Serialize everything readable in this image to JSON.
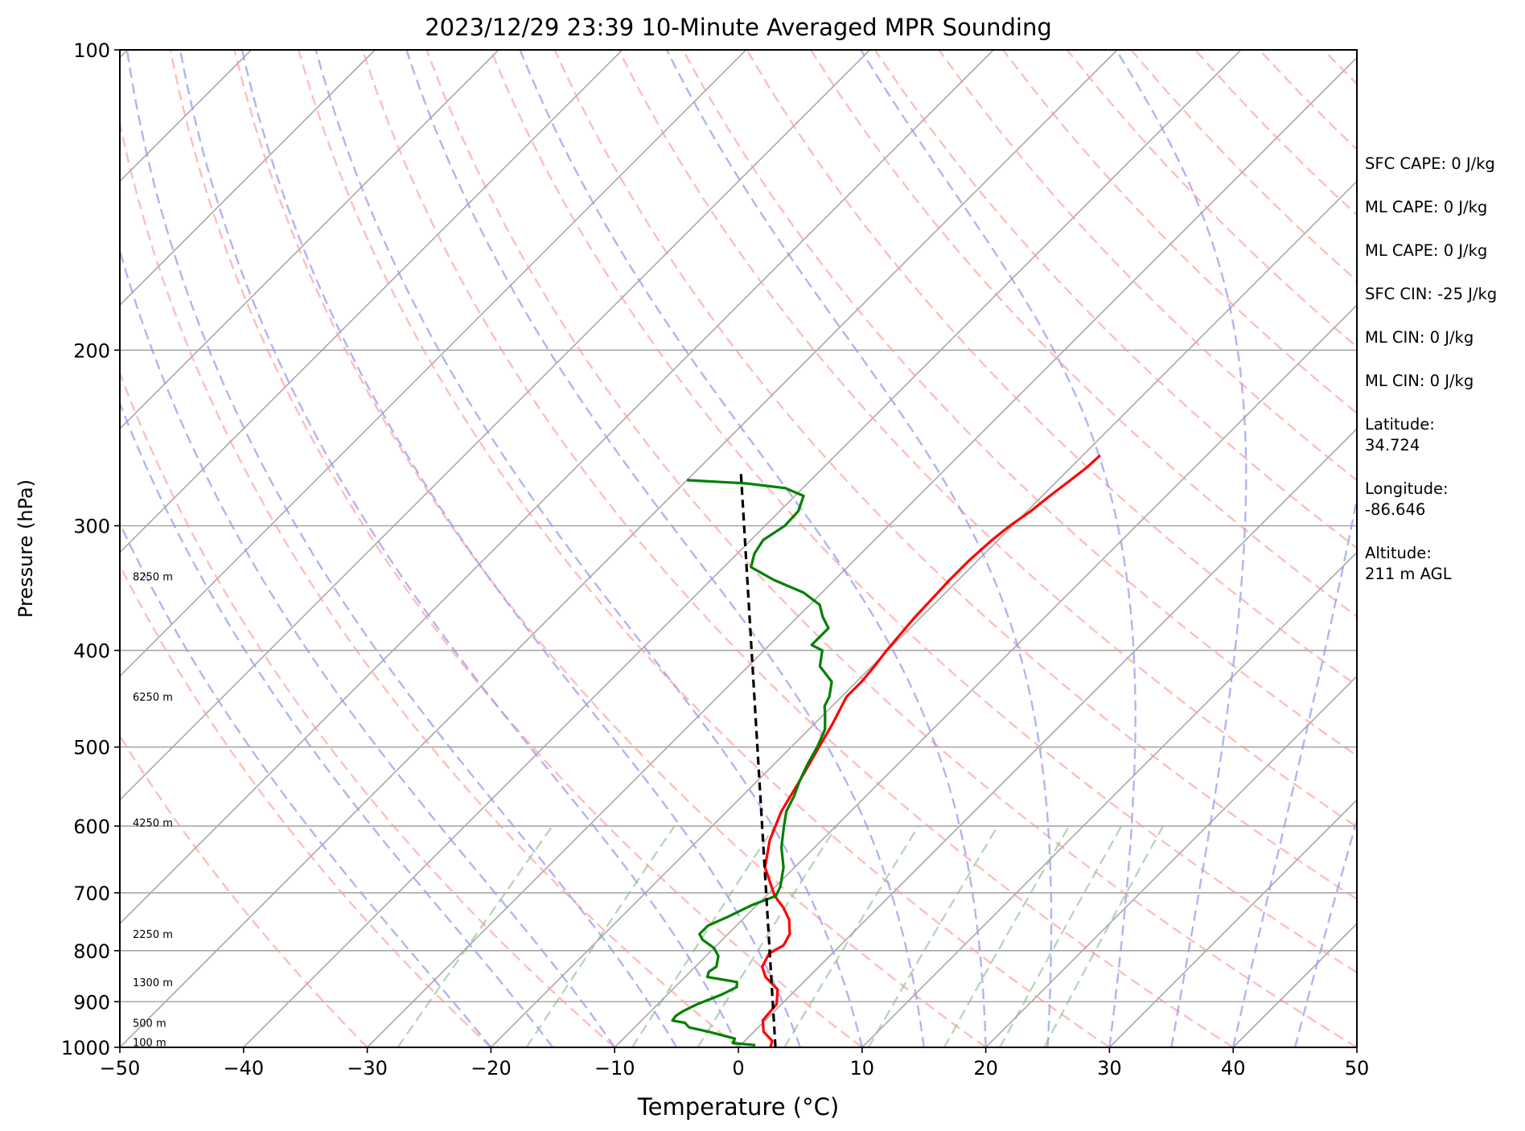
{
  "chart_data": {
    "type": "line",
    "title": "2023/12/29 23:39 10-Minute Averaged MPR Sounding",
    "xlabel": "Temperature (°C)",
    "ylabel": "Pressure (hPa)",
    "xlim": [
      -50,
      50
    ],
    "ylim": [
      1000,
      100
    ],
    "y_scale": "log",
    "skew": "Skew-T",
    "grid": true,
    "x_ticks": [
      -50,
      -40,
      -30,
      -20,
      -10,
      0,
      10,
      20,
      30,
      40,
      50
    ],
    "x_tick_labels": [
      "−50",
      "−40",
      "−30",
      "−20",
      "−10",
      "0",
      "10",
      "20",
      "30",
      "40",
      "50"
    ],
    "y_ticks": [
      1000,
      900,
      800,
      700,
      600,
      500,
      400,
      300,
      200,
      100
    ],
    "y_tick_labels": [
      "1000",
      "900",
      "800",
      "700",
      "600",
      "500",
      "400",
      "300",
      "200",
      "100"
    ],
    "background_lines": {
      "dry_adiabats_color": "#ff9999",
      "moist_adiabats_color": "#9999ee",
      "mixing_ratio_color": "#88bb88",
      "isotherm_color": "#a8a8a8"
    },
    "series": [
      {
        "color": "#ff0000",
        "points": [
          [
            2.6,
            1000
          ],
          [
            2.2,
            985
          ],
          [
            0.8,
            965
          ],
          [
            -0.2,
            940
          ],
          [
            -0.4,
            905
          ],
          [
            -1.5,
            875
          ],
          [
            -3.5,
            850
          ],
          [
            -4.6,
            830
          ],
          [
            -5.1,
            805
          ],
          [
            -4.6,
            790
          ],
          [
            -5.0,
            770
          ],
          [
            -6.2,
            745
          ],
          [
            -7.6,
            725
          ],
          [
            -9.3,
            705
          ],
          [
            -12.4,
            660
          ],
          [
            -14.2,
            620
          ],
          [
            -15.6,
            580
          ],
          [
            -16.6,
            540
          ],
          [
            -17.6,
            505
          ],
          [
            -18.5,
            475
          ],
          [
            -19.6,
            445
          ],
          [
            -19.6,
            430
          ],
          [
            -19.8,
            415
          ],
          [
            -20.1,
            400
          ],
          [
            -20.3,
            385
          ],
          [
            -20.5,
            370
          ],
          [
            -20.6,
            355
          ],
          [
            -20.7,
            340
          ],
          [
            -20.7,
            325
          ],
          [
            -20.5,
            310
          ],
          [
            -20.2,
            300
          ],
          [
            -19.7,
            290
          ],
          [
            -19.4,
            280
          ],
          [
            -19.0,
            270
          ],
          [
            -18.7,
            262
          ],
          [
            -18.6,
            255
          ]
        ]
      },
      {
        "color": "#008000",
        "points": [
          [
            1.2,
            995
          ],
          [
            -0.8,
            990
          ],
          [
            -1.0,
            980
          ],
          [
            -3.6,
            965
          ],
          [
            -5.6,
            955
          ],
          [
            -6.3,
            945
          ],
          [
            -7.5,
            940
          ],
          [
            -7.6,
            930
          ],
          [
            -7.4,
            920
          ],
          [
            -6.8,
            905
          ],
          [
            -5.6,
            885
          ],
          [
            -5.0,
            870
          ],
          [
            -5.4,
            860
          ],
          [
            -8.2,
            850
          ],
          [
            -8.5,
            840
          ],
          [
            -8.3,
            830
          ],
          [
            -9.0,
            810
          ],
          [
            -10.0,
            795
          ],
          [
            -11.6,
            780
          ],
          [
            -12.3,
            770
          ],
          [
            -12.3,
            755
          ],
          [
            -11.4,
            740
          ],
          [
            -10.4,
            720
          ],
          [
            -9.2,
            705
          ],
          [
            -9.6,
            690
          ],
          [
            -10.9,
            660
          ],
          [
            -12.7,
            630
          ],
          [
            -14.2,
            600
          ],
          [
            -15.2,
            580
          ],
          [
            -15.8,
            560
          ],
          [
            -16.6,
            540
          ],
          [
            -17.3,
            520
          ],
          [
            -17.9,
            500
          ],
          [
            -18.7,
            480
          ],
          [
            -19.8,
            465
          ],
          [
            -20.6,
            455
          ],
          [
            -21.0,
            445
          ],
          [
            -22.0,
            430
          ],
          [
            -24.2,
            415
          ],
          [
            -25.3,
            400
          ],
          [
            -26.6,
            395
          ],
          [
            -26.6,
            380
          ],
          [
            -28.0,
            370
          ],
          [
            -29.2,
            360
          ],
          [
            -31.5,
            350
          ],
          [
            -34.9,
            340
          ],
          [
            -37.8,
            330
          ],
          [
            -38.6,
            320
          ],
          [
            -39.0,
            310
          ],
          [
            -38.4,
            300
          ],
          [
            -38.5,
            290
          ],
          [
            -39.3,
            280
          ],
          [
            -41.4,
            275
          ],
          [
            -45.0,
            272
          ],
          [
            -50.0,
            270
          ]
        ]
      },
      {
        "color": "#000000",
        "dashed": true,
        "points": [
          [
            3.0,
            1000
          ],
          [
            -46.3,
            265
          ]
        ]
      }
    ],
    "height_labels": [
      {
        "text": "100 m",
        "p": 988
      },
      {
        "text": "500 m",
        "p": 945
      },
      {
        "text": "1300 m",
        "p": 860
      },
      {
        "text": "2250 m",
        "p": 770
      },
      {
        "text": "4250 m",
        "p": 595
      },
      {
        "text": "6250 m",
        "p": 445
      },
      {
        "text": "8250 m",
        "p": 337
      }
    ],
    "annotations": [
      "SFC CAPE: 0 J/kg",
      "ML CAPE: 0 J/kg",
      "ML CAPE: 0 J/kg",
      "SFC CIN: -25 J/kg",
      "ML CIN: 0 J/kg",
      "ML CIN: 0 J/kg",
      "Latitude:\n34.724",
      "Longitude:\n-86.646",
      "Altitude:\n211 m AGL"
    ]
  }
}
